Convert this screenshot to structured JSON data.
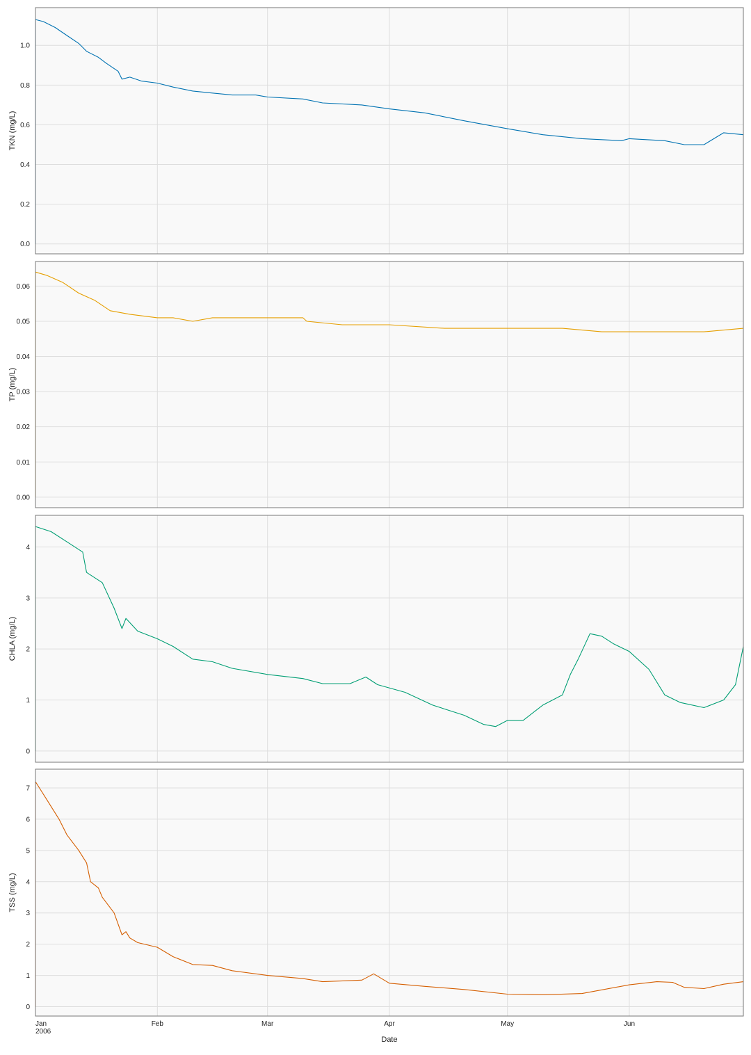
{
  "figure": {
    "xlabel": "Date",
    "x_ticks": [
      {
        "date": "2006-01-01",
        "label": "Jan",
        "sublabel": "2006"
      },
      {
        "date": "2006-02-01",
        "label": "Feb",
        "sublabel": ""
      },
      {
        "date": "2006-03-01",
        "label": "Mar",
        "sublabel": ""
      },
      {
        "date": "2006-04-01",
        "label": "Apr",
        "sublabel": ""
      },
      {
        "date": "2006-05-01",
        "label": "May",
        "sublabel": ""
      },
      {
        "date": "2006-06-01",
        "label": "Jun",
        "sublabel": ""
      }
    ],
    "xlim": [
      "2006-01-01",
      "2006-06-30"
    ],
    "grid": true,
    "background": "#f9f9f9"
  },
  "chart_data": [
    {
      "type": "line",
      "ylabel": "TKN (mg/L)",
      "color": "#0072b2",
      "ylim": [
        -0.05,
        1.19
      ],
      "yticks": [
        0.0,
        0.2,
        0.4,
        0.6,
        0.8,
        1.0
      ],
      "ytick_labels": [
        "0.0",
        "0.2",
        "0.4",
        "0.6",
        "0.8",
        "1.0"
      ],
      "x": [
        "2006-01-01",
        "2006-01-03",
        "2006-01-06",
        "2006-01-09",
        "2006-01-12",
        "2006-01-14",
        "2006-01-17",
        "2006-01-19",
        "2006-01-22",
        "2006-01-23",
        "2006-01-25",
        "2006-01-28",
        "2006-02-01",
        "2006-02-05",
        "2006-02-10",
        "2006-02-15",
        "2006-02-20",
        "2006-02-26",
        "2006-03-01",
        "2006-03-10",
        "2006-03-15",
        "2006-03-25",
        "2006-04-01",
        "2006-04-10",
        "2006-04-20",
        "2006-05-01",
        "2006-05-10",
        "2006-05-20",
        "2006-05-30",
        "2006-06-01",
        "2006-06-10",
        "2006-06-15",
        "2006-06-20",
        "2006-06-25",
        "2006-06-30"
      ],
      "y": [
        1.13,
        1.12,
        1.09,
        1.05,
        1.01,
        0.97,
        0.94,
        0.91,
        0.87,
        0.83,
        0.84,
        0.82,
        0.81,
        0.79,
        0.77,
        0.76,
        0.75,
        0.75,
        0.74,
        0.73,
        0.71,
        0.7,
        0.68,
        0.66,
        0.62,
        0.58,
        0.55,
        0.53,
        0.52,
        0.53,
        0.52,
        0.5,
        0.5,
        0.56,
        0.55
      ]
    },
    {
      "type": "line",
      "ylabel": "TP (mg/L)",
      "color": "#e69f00",
      "ylim": [
        -0.003,
        0.067
      ],
      "yticks": [
        0.0,
        0.01,
        0.02,
        0.03,
        0.04,
        0.05,
        0.06
      ],
      "ytick_labels": [
        "0.00",
        "0.01",
        "0.02",
        "0.03",
        "0.04",
        "0.05",
        "0.06"
      ],
      "x": [
        "2006-01-01",
        "2006-01-04",
        "2006-01-08",
        "2006-01-12",
        "2006-01-16",
        "2006-01-20",
        "2006-01-25",
        "2006-02-01",
        "2006-02-05",
        "2006-02-10",
        "2006-02-15",
        "2006-02-20",
        "2006-03-01",
        "2006-03-10",
        "2006-03-11",
        "2006-03-20",
        "2006-04-01",
        "2006-04-15",
        "2006-05-01",
        "2006-05-15",
        "2006-05-25",
        "2006-06-01",
        "2006-06-10",
        "2006-06-20",
        "2006-06-30"
      ],
      "y": [
        0.064,
        0.063,
        0.061,
        0.058,
        0.056,
        0.053,
        0.052,
        0.051,
        0.051,
        0.05,
        0.051,
        0.051,
        0.051,
        0.051,
        0.05,
        0.049,
        0.049,
        0.048,
        0.048,
        0.048,
        0.047,
        0.047,
        0.047,
        0.047,
        0.048
      ]
    },
    {
      "type": "line",
      "ylabel": "CHLA (mg/L)",
      "color": "#009e73",
      "ylim": [
        -0.22,
        4.62
      ],
      "yticks": [
        0,
        1,
        2,
        3,
        4
      ],
      "ytick_labels": [
        "0",
        "1",
        "2",
        "3",
        "4"
      ],
      "x": [
        "2006-01-01",
        "2006-01-05",
        "2006-01-09",
        "2006-01-13",
        "2006-01-14",
        "2006-01-18",
        "2006-01-21",
        "2006-01-23",
        "2006-01-24",
        "2006-01-27",
        "2006-02-01",
        "2006-02-05",
        "2006-02-10",
        "2006-02-15",
        "2006-02-20",
        "2006-03-01",
        "2006-03-10",
        "2006-03-15",
        "2006-03-22",
        "2006-03-26",
        "2006-03-29",
        "2006-04-05",
        "2006-04-12",
        "2006-04-20",
        "2006-04-25",
        "2006-04-28",
        "2006-05-01",
        "2006-05-05",
        "2006-05-10",
        "2006-05-15",
        "2006-05-17",
        "2006-05-19",
        "2006-05-22",
        "2006-05-25",
        "2006-05-28",
        "2006-06-01",
        "2006-06-06",
        "2006-06-10",
        "2006-06-14",
        "2006-06-20",
        "2006-06-25",
        "2006-06-28",
        "2006-06-30"
      ],
      "y": [
        4.4,
        4.3,
        4.1,
        3.9,
        3.5,
        3.3,
        2.8,
        2.4,
        2.6,
        2.35,
        2.2,
        2.05,
        1.8,
        1.75,
        1.62,
        1.5,
        1.42,
        1.32,
        1.32,
        1.45,
        1.3,
        1.15,
        0.9,
        0.7,
        0.52,
        0.48,
        0.6,
        0.6,
        0.9,
        1.1,
        1.5,
        1.8,
        2.3,
        2.25,
        2.1,
        1.95,
        1.6,
        1.1,
        0.95,
        0.85,
        1.0,
        1.3,
        2.05
      ]
    },
    {
      "type": "line",
      "ylabel": "TSS (mg/L)",
      "color": "#d55e00",
      "ylim": [
        -0.3,
        7.6
      ],
      "yticks": [
        0,
        1,
        2,
        3,
        4,
        5,
        6,
        7
      ],
      "ytick_labels": [
        "0",
        "1",
        "2",
        "3",
        "4",
        "5",
        "6",
        "7"
      ],
      "x": [
        "2006-01-01",
        "2006-01-04",
        "2006-01-07",
        "2006-01-09",
        "2006-01-12",
        "2006-01-14",
        "2006-01-15",
        "2006-01-17",
        "2006-01-18",
        "2006-01-21",
        "2006-01-23",
        "2006-01-24",
        "2006-01-25",
        "2006-01-27",
        "2006-02-01",
        "2006-02-05",
        "2006-02-10",
        "2006-02-15",
        "2006-02-20",
        "2006-03-01",
        "2006-03-10",
        "2006-03-15",
        "2006-03-25",
        "2006-03-28",
        "2006-04-01",
        "2006-04-10",
        "2006-04-20",
        "2006-05-01",
        "2006-05-10",
        "2006-05-20",
        "2006-06-01",
        "2006-06-08",
        "2006-06-12",
        "2006-06-15",
        "2006-06-20",
        "2006-06-25",
        "2006-06-30"
      ],
      "y": [
        7.2,
        6.6,
        6.0,
        5.5,
        5.0,
        4.6,
        4.0,
        3.8,
        3.5,
        3.0,
        2.3,
        2.4,
        2.2,
        2.05,
        1.9,
        1.6,
        1.35,
        1.32,
        1.15,
        1.0,
        0.9,
        0.8,
        0.85,
        1.05,
        0.75,
        0.65,
        0.55,
        0.4,
        0.38,
        0.42,
        0.7,
        0.8,
        0.78,
        0.62,
        0.58,
        0.72,
        0.8
      ]
    }
  ]
}
